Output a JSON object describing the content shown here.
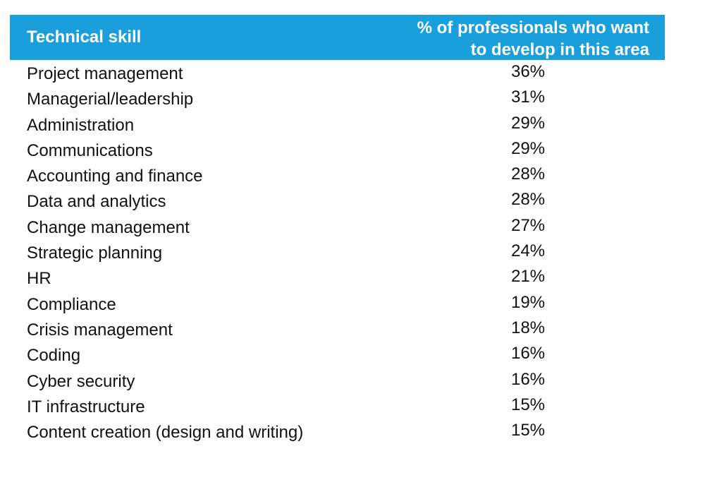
{
  "chart_data": {
    "type": "table",
    "columns": [
      "Technical skill",
      "% of professionals who want to develop in this area"
    ],
    "header": {
      "skill": "Technical skill",
      "pct_line1": "% of professionals who want",
      "pct_line2": "to develop in this area"
    },
    "rows": [
      {
        "skill": "Project management",
        "pct": "36%",
        "value": 36
      },
      {
        "skill": "Managerial/leadership",
        "pct": "31%",
        "value": 31
      },
      {
        "skill": "Administration",
        "pct": "29%",
        "value": 29
      },
      {
        "skill": "Communications",
        "pct": "29%",
        "value": 29
      },
      {
        "skill": "Accounting and finance",
        "pct": "28%",
        "value": 28
      },
      {
        "skill": "Data and analytics",
        "pct": "28%",
        "value": 28
      },
      {
        "skill": "Change management",
        "pct": "27%",
        "value": 27
      },
      {
        "skill": "Strategic planning",
        "pct": "24%",
        "value": 24
      },
      {
        "skill": "HR",
        "pct": "21%",
        "value": 21
      },
      {
        "skill": "Compliance",
        "pct": "19%",
        "value": 19
      },
      {
        "skill": "Crisis management",
        "pct": "18%",
        "value": 18
      },
      {
        "skill": "Coding",
        "pct": "16%",
        "value": 16
      },
      {
        "skill": "Cyber security",
        "pct": "16%",
        "value": 16
      },
      {
        "skill": "IT infrastructure",
        "pct": "15%",
        "value": 15
      },
      {
        "skill": "Content creation (design and writing)",
        "pct": "15%",
        "value": 15
      }
    ]
  },
  "colors": {
    "header_bg": "#1a9fdc",
    "header_text": "#ffffff",
    "body_text": "#111111"
  }
}
